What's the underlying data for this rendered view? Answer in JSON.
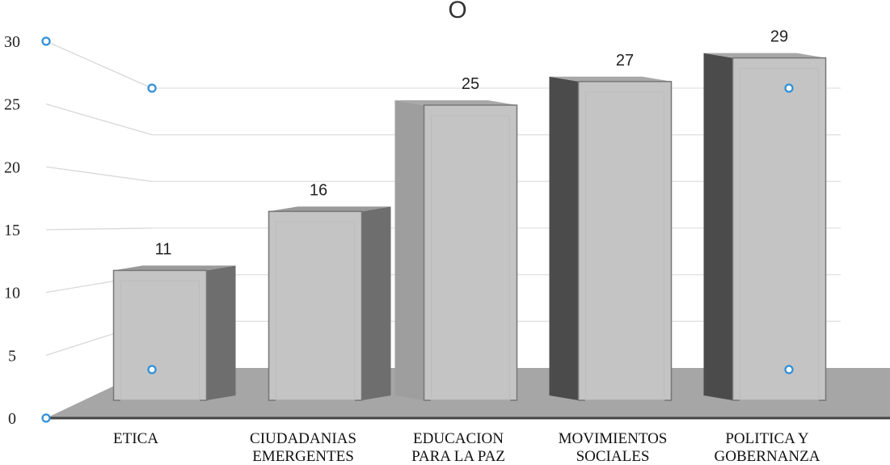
{
  "chart_data": {
    "type": "bar",
    "title_fragment": "O",
    "categories": [
      [
        "ETICA"
      ],
      [
        "CIUDADANIAS",
        "EMERGENTES"
      ],
      [
        "EDUCACION",
        "PARA LA PAZ"
      ],
      [
        "MOVIMIENTOS",
        "SOCIALES"
      ],
      [
        "POLITICA Y",
        "GOBERNANZA"
      ]
    ],
    "values": [
      11,
      16,
      25,
      27,
      29
    ],
    "ylim": [
      0,
      30
    ],
    "yticks": [
      0,
      5,
      10,
      15,
      20,
      25,
      30
    ],
    "grid": true,
    "style": "3d-column",
    "colors": {
      "bar_front": "#c4c4c4",
      "bar_side": "#6e6e6e",
      "floor": "#a6a6a6",
      "selection_handle": "#2e8fd8"
    }
  }
}
